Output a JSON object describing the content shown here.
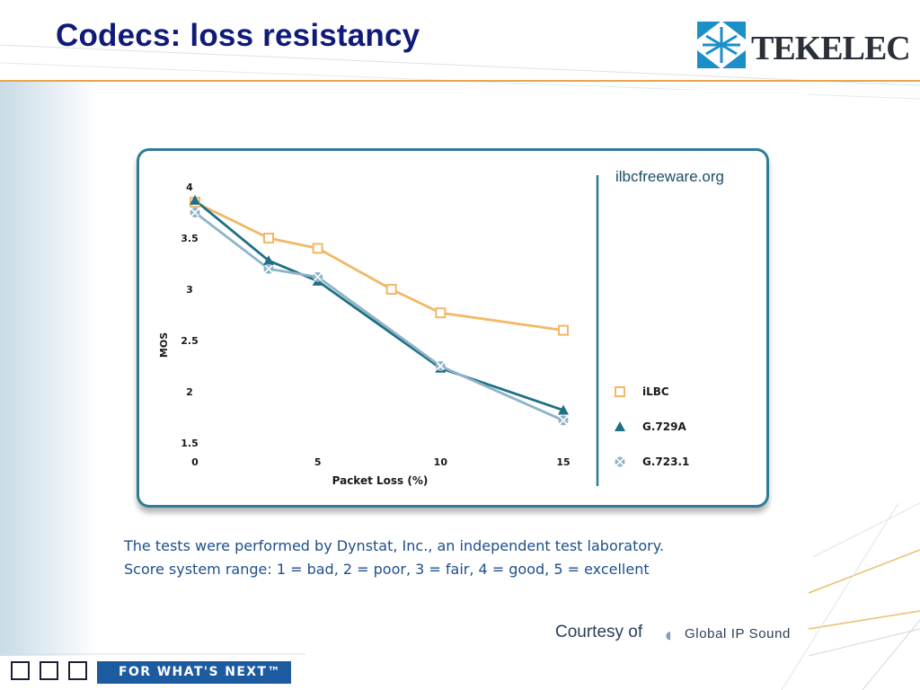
{
  "slide": {
    "title": "Codecs: loss resistancy",
    "logo_text": "TEKELEC",
    "caption_line1": "The tests were performed by Dynstat, Inc., an independent test laboratory.",
    "caption_line2": "Score system range: 1 = bad, 2 = poor, 3 = fair, 4 = good, 5 = excellent",
    "courtesy_label": "Courtesy of",
    "courtesy_company": "Global IP Sound",
    "footer_tagline": "FOR WHAT'S NEXT™",
    "accent_color": "#101a78",
    "line_color": "#e8a64a"
  },
  "chart_data": {
    "type": "line",
    "title": "",
    "source": "ilbcfreeware.org",
    "xlabel": "Packet Loss (%)",
    "ylabel": "MOS",
    "xlim": [
      0,
      15
    ],
    "ylim": [
      1.5,
      4
    ],
    "xticks": [
      "0",
      "5",
      "10",
      "15"
    ],
    "yticks": [
      "1.5",
      "2",
      "2.5",
      "3",
      "3.5",
      "4"
    ],
    "legend_position": "right",
    "grid": false,
    "series": [
      {
        "name": "iLBC",
        "marker": "square",
        "color": "#f2b866",
        "x": [
          0,
          3,
          5,
          8,
          10,
          15
        ],
        "y": [
          3.85,
          3.5,
          3.4,
          3.0,
          2.77,
          2.6
        ]
      },
      {
        "name": "G.729A",
        "marker": "triangle",
        "color": "#1f6f86",
        "x": [
          0,
          3,
          5,
          10,
          15
        ],
        "y": [
          3.87,
          3.28,
          3.08,
          2.23,
          1.82
        ]
      },
      {
        "name": "G.723.1",
        "marker": "cross",
        "color": "#8fb4c8",
        "x": [
          0,
          3,
          5,
          10,
          15
        ],
        "y": [
          3.75,
          3.2,
          3.12,
          2.25,
          1.72
        ]
      }
    ]
  }
}
